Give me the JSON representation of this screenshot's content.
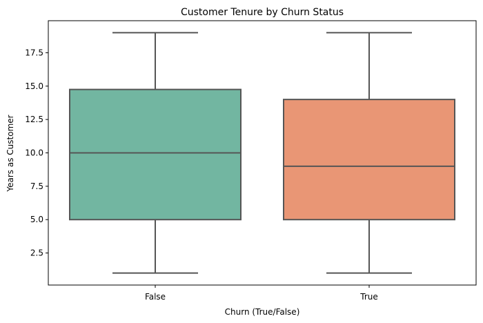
{
  "chart_data": {
    "type": "box",
    "title": "Customer Tenure by Churn Status",
    "xlabel": "Churn (True/False)",
    "ylabel": "Years as Customer",
    "ylim": [
      0.1,
      19.9
    ],
    "yticks": [
      2.5,
      5.0,
      7.5,
      10.0,
      12.5,
      15.0,
      17.5
    ],
    "ytick_labels": [
      "2.5",
      "5.0",
      "7.5",
      "10.0",
      "12.5",
      "15.0",
      "17.5"
    ],
    "categories": [
      "False",
      "True"
    ],
    "boxes": [
      {
        "category": "False",
        "whisker_low": 1,
        "q1": 5,
        "median": 10,
        "q3": 14.75,
        "whisker_high": 19,
        "color": "#72b6a1"
      },
      {
        "category": "True",
        "whisker_low": 1,
        "q1": 5,
        "median": 9,
        "q3": 14,
        "whisker_high": 19,
        "color": "#e99675"
      }
    ],
    "grid": false,
    "legend": "none"
  }
}
